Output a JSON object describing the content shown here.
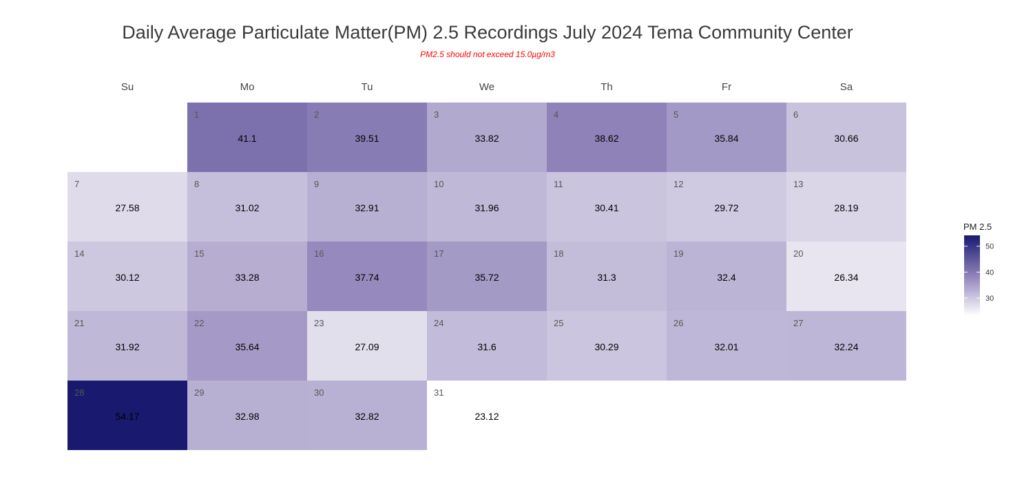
{
  "chart_data": {
    "type": "heatmap",
    "title": "Daily Average Particulate Matter(PM) 2.5 Recordings July 2024 Tema Community Center",
    "subtitle": "PM2.5 should not exceed 15.0µg/m3",
    "weekdays": [
      "Su",
      "Mo",
      "Tu",
      "We",
      "Th",
      "Fr",
      "Sa"
    ],
    "first_weekday_index": 1,
    "days": [
      1,
      2,
      3,
      4,
      5,
      6,
      7,
      8,
      9,
      10,
      11,
      12,
      13,
      14,
      15,
      16,
      17,
      18,
      19,
      20,
      21,
      22,
      23,
      24,
      25,
      26,
      27,
      28,
      29,
      30,
      31
    ],
    "values": [
      41.1,
      39.51,
      33.82,
      38.62,
      35.84,
      30.66,
      27.58,
      31.02,
      32.91,
      31.96,
      30.41,
      29.72,
      28.19,
      30.12,
      33.28,
      37.74,
      35.72,
      31.3,
      32.4,
      26.34,
      31.92,
      35.64,
      27.09,
      31.6,
      30.29,
      32.01,
      32.24,
      54.17,
      32.98,
      32.82,
      23.12
    ],
    "legend": {
      "title": "PM 2.5",
      "ticks": [
        30,
        40,
        50
      ],
      "range": [
        23.12,
        54.17
      ],
      "position": "right"
    },
    "colors": {
      "low": "#ffffff",
      "mid": "#8f82b9",
      "high": "#191970",
      "subtitle": "#ff0000"
    }
  }
}
